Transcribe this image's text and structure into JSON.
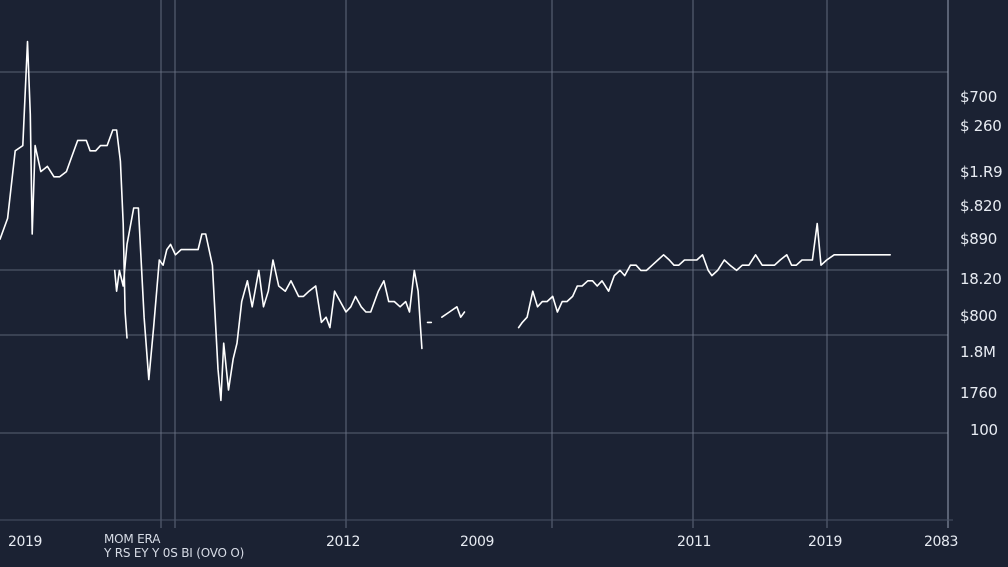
{
  "chart_data": {
    "type": "line",
    "title": "",
    "xlabel": "",
    "ylabel": "",
    "grid": true,
    "colors": {
      "background": "#1b2233",
      "grid": "#6e7789",
      "line": "#ffffff",
      "text": "#e7ebf2"
    },
    "caption_lines": [
      "MOM ERA",
      "Y RS EY Y 0S BI (OVO O)"
    ],
    "y_tick_labels": [
      "$700",
      "$ 260",
      "$1.R9",
      "$.820",
      "$890",
      "18.20",
      "$800",
      "1.8M",
      "1760",
      "100"
    ],
    "x_tick_labels": [
      "2019",
      "2012",
      "2009",
      "2011",
      "2019",
      "2083"
    ],
    "series": [
      {
        "segments": [
          [
            [
              0.0,
              54
            ],
            [
              0.8,
              58
            ],
            [
              1.6,
              71
            ],
            [
              2.4,
              72
            ],
            [
              2.9,
              92
            ],
            [
              3.2,
              78
            ],
            [
              3.4,
              55
            ],
            [
              3.7,
              72
            ],
            [
              4.3,
              67
            ],
            [
              5.0,
              68
            ],
            [
              5.7,
              66
            ],
            [
              6.3,
              66
            ],
            [
              7.0,
              67
            ],
            [
              7.6,
              70
            ],
            [
              8.2,
              73
            ],
            [
              9.1,
              73
            ],
            [
              9.5,
              71
            ],
            [
              10.1,
              71
            ],
            [
              10.6,
              72
            ],
            [
              11.3,
              72
            ],
            [
              11.9,
              75
            ],
            [
              12.3,
              75
            ],
            [
              12.7,
              69
            ],
            [
              13.0,
              57
            ],
            [
              13.2,
              40
            ],
            [
              13.4,
              35
            ]
          ],
          [
            [
              12.1,
              48
            ],
            [
              12.3,
              44
            ],
            [
              12.6,
              48
            ],
            [
              13.0,
              45
            ],
            [
              13.4,
              53
            ],
            [
              14.1,
              60
            ],
            [
              14.6,
              60
            ],
            [
              15.2,
              39
            ],
            [
              15.7,
              27
            ],
            [
              16.2,
              37
            ],
            [
              16.8,
              50
            ],
            [
              17.2,
              49
            ],
            [
              17.6,
              52
            ],
            [
              18.0,
              53
            ],
            [
              18.5,
              51
            ],
            [
              19.1,
              52
            ],
            [
              19.8,
              52
            ],
            [
              20.4,
              52
            ],
            [
              20.9,
              52
            ],
            [
              21.3,
              55
            ],
            [
              21.7,
              55
            ],
            [
              22.4,
              49
            ],
            [
              23.0,
              29
            ],
            [
              23.3,
              23
            ],
            [
              23.6,
              34
            ],
            [
              24.1,
              25
            ],
            [
              24.6,
              31
            ],
            [
              25.0,
              34
            ],
            [
              25.5,
              42
            ],
            [
              26.1,
              46
            ],
            [
              26.6,
              41
            ],
            [
              27.3,
              48
            ],
            [
              27.8,
              41
            ],
            [
              28.3,
              44
            ],
            [
              28.8,
              50
            ],
            [
              29.4,
              45
            ],
            [
              30.1,
              44
            ],
            [
              30.7,
              46
            ],
            [
              31.5,
              43
            ],
            [
              32.0,
              43
            ],
            [
              32.6,
              44
            ],
            [
              33.3,
              45
            ],
            [
              33.9,
              38
            ],
            [
              34.4,
              39
            ],
            [
              34.8,
              37
            ],
            [
              35.3,
              44
            ],
            [
              35.9,
              42
            ],
            [
              36.5,
              40
            ],
            [
              37.0,
              41
            ],
            [
              37.5,
              43
            ],
            [
              38.1,
              41
            ],
            [
              38.6,
              40
            ],
            [
              39.1,
              40
            ],
            [
              39.9,
              44
            ],
            [
              40.5,
              46
            ],
            [
              41.0,
              42
            ],
            [
              41.6,
              42
            ],
            [
              42.2,
              41
            ],
            [
              42.8,
              42
            ],
            [
              43.2,
              40
            ],
            [
              43.7,
              48
            ],
            [
              44.1,
              44
            ],
            [
              44.5,
              33
            ]
          ],
          [
            [
              45.1,
              38
            ],
            [
              45.5,
              38
            ]
          ],
          [
            [
              46.6,
              39
            ],
            [
              47.4,
              40
            ],
            [
              48.2,
              41
            ],
            [
              48.6,
              39
            ],
            [
              49.0,
              40
            ]
          ],
          [
            [
              54.7,
              37
            ],
            [
              55.1,
              38
            ],
            [
              55.6,
              39
            ],
            [
              56.2,
              44
            ],
            [
              56.7,
              41
            ],
            [
              57.2,
              42
            ],
            [
              57.7,
              42
            ],
            [
              58.3,
              43
            ],
            [
              58.8,
              40
            ],
            [
              59.3,
              42
            ],
            [
              59.8,
              42
            ],
            [
              60.4,
              43
            ],
            [
              60.9,
              45
            ],
            [
              61.4,
              45
            ],
            [
              62.0,
              46
            ],
            [
              62.5,
              46
            ],
            [
              63.0,
              45
            ],
            [
              63.5,
              46
            ],
            [
              64.2,
              44
            ],
            [
              64.8,
              47
            ],
            [
              65.4,
              48
            ],
            [
              65.9,
              47
            ],
            [
              66.5,
              49
            ],
            [
              67.1,
              49
            ],
            [
              67.6,
              48
            ],
            [
              68.2,
              48
            ],
            [
              68.8,
              49
            ],
            [
              69.4,
              50
            ],
            [
              70.0,
              51
            ],
            [
              70.6,
              50
            ],
            [
              71.1,
              49
            ],
            [
              71.6,
              49
            ],
            [
              72.2,
              50
            ],
            [
              72.8,
              50
            ],
            [
              73.5,
              50
            ],
            [
              74.1,
              51
            ],
            [
              74.7,
              48
            ],
            [
              75.1,
              47
            ],
            [
              75.7,
              48
            ],
            [
              76.4,
              50
            ],
            [
              77.0,
              49
            ],
            [
              77.7,
              48
            ],
            [
              78.3,
              49
            ],
            [
              79.0,
              49
            ],
            [
              79.7,
              51
            ],
            [
              80.4,
              49
            ],
            [
              81.0,
              49
            ],
            [
              81.7,
              49
            ],
            [
              82.3,
              50
            ],
            [
              83.0,
              51
            ],
            [
              83.5,
              49
            ],
            [
              84.0,
              49
            ],
            [
              84.6,
              50
            ],
            [
              85.1,
              50
            ],
            [
              85.7,
              50
            ],
            [
              86.2,
              57
            ],
            [
              86.6,
              49
            ],
            [
              87.2,
              50
            ],
            [
              88.0,
              51
            ],
            [
              89.0,
              51
            ],
            [
              90.0,
              51
            ],
            [
              91.0,
              51
            ],
            [
              92.0,
              51
            ],
            [
              93.0,
              51
            ],
            [
              93.9,
              51
            ]
          ]
        ]
      }
    ]
  }
}
